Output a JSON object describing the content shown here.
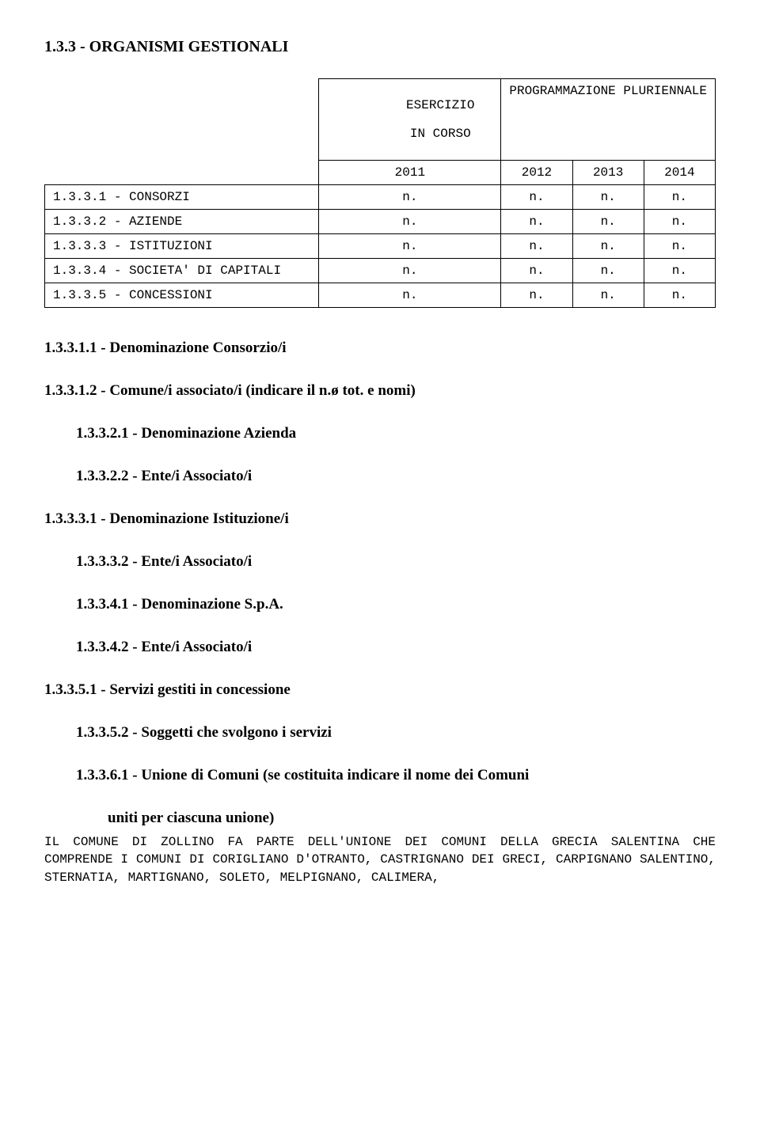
{
  "title": "1.3.3 - ORGANISMI GESTIONALI",
  "table": {
    "header": {
      "left_line1": "ESERCIZIO",
      "left_line2": "IN CORSO",
      "right": "PROGRAMMAZIONE PLURIENNALE",
      "years": [
        "2011",
        "2012",
        "2013",
        "2014"
      ]
    },
    "rows": [
      {
        "label": "1.3.3.1 - CONSORZI",
        "v": [
          "n.",
          "n.",
          "n.",
          "n."
        ]
      },
      {
        "label": "1.3.3.2 - AZIENDE",
        "v": [
          "n.",
          "n.",
          "n.",
          "n."
        ]
      },
      {
        "label": "1.3.3.3 - ISTITUZIONI",
        "v": [
          "n.",
          "n.",
          "n.",
          "n."
        ]
      },
      {
        "label": "1.3.3.4 - SOCIETA' DI CAPITALI",
        "v": [
          "n.",
          "n.",
          "n.",
          "n."
        ]
      },
      {
        "label": "1.3.3.5 - CONCESSIONI",
        "v": [
          "n.",
          "n.",
          "n.",
          "n."
        ]
      }
    ]
  },
  "sections": [
    {
      "text": "1.3.3.1.1 - Denominazione Consorzio/i",
      "indent": 0
    },
    {
      "text": "1.3.3.1.2 - Comune/i associato/i (indicare il n.ø tot. e nomi)",
      "indent": 0
    },
    {
      "text": "1.3.3.2.1 - Denominazione Azienda",
      "indent": 1
    },
    {
      "text": "1.3.3.2.2 - Ente/i Associato/i",
      "indent": 1
    },
    {
      "text": "1.3.3.3.1 - Denominazione Istituzione/i",
      "indent": 0
    },
    {
      "text": "1.3.3.3.2 - Ente/i Associato/i",
      "indent": 1
    },
    {
      "text": "1.3.3.4.1 - Denominazione S.p.A.",
      "indent": 1
    },
    {
      "text": "1.3.3.4.2 - Ente/i Associato/i",
      "indent": 1
    },
    {
      "text": "1.3.3.5.1 - Servizi gestiti in concessione",
      "indent": 0
    },
    {
      "text": "1.3.3.5.2 - Soggetti che svolgono i servizi",
      "indent": 1
    },
    {
      "text": "1.3.3.6.1 - Unione di Comuni (se costituita indicare il nome dei Comuni",
      "indent": 1
    },
    {
      "text": "uniti per ciascuna unione)",
      "indent": 2
    }
  ],
  "body_paragraph": "IL COMUNE DI ZOLLINO FA PARTE DELL'UNIONE DEI COMUNI DELLA GRECIA SALENTINA CHE COMPRENDE I COMUNI DI CORIGLIANO D'OTRANTO, CASTRIGNANO DEI GRECI, CARPIGNANO SALENTINO, STERNATIA, MARTIGNANO, SOLETO, MELPIGNANO, CALIMERA,"
}
